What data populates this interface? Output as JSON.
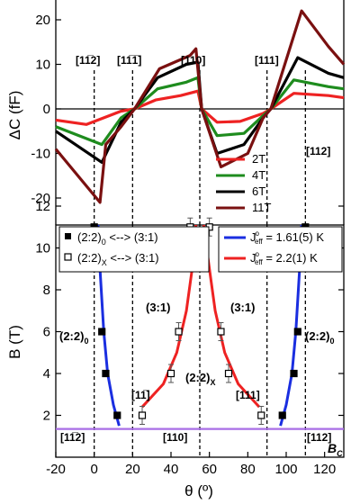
{
  "chart_data": [
    {
      "type": "line",
      "panel": "top",
      "ylabel": "ΔC (fF)",
      "xlim": [
        -20,
        130
      ],
      "ylim": [
        -25,
        24
      ],
      "yticks": [
        -20,
        -10,
        0,
        10,
        20
      ],
      "legend_position": "bottom-right",
      "series": [
        {
          "name": "2T",
          "color": "#ee2222",
          "values": [
            [
              -20,
              -2.5
            ],
            [
              -4,
              -3.5
            ],
            [
              14,
              -0.5
            ],
            [
              21,
              0
            ],
            [
              32,
              2
            ],
            [
              45,
              3
            ],
            [
              54,
              4
            ],
            [
              56,
              0
            ],
            [
              64,
              -3
            ],
            [
              76,
              -2.8
            ],
            [
              88,
              -1
            ],
            [
              92,
              0
            ],
            [
              104,
              3.5
            ],
            [
              122,
              3
            ],
            [
              130,
              2.5
            ]
          ]
        },
        {
          "name": "4T",
          "color": "#1e8c1e",
          "values": [
            [
              -20,
              -4
            ],
            [
              4,
              -8
            ],
            [
              14,
              -2
            ],
            [
              21,
              0
            ],
            [
              33,
              4.5
            ],
            [
              48,
              6
            ],
            [
              54,
              7
            ],
            [
              56,
              0
            ],
            [
              64,
              -6
            ],
            [
              78,
              -5.5
            ],
            [
              88,
              -1.5
            ],
            [
              92,
              0
            ],
            [
              104,
              6.5
            ],
            [
              122,
              5
            ],
            [
              130,
              4.5
            ]
          ]
        },
        {
          "name": "6T",
          "color": "#000000",
          "values": [
            [
              -20,
              -5
            ],
            [
              4,
              -12
            ],
            [
              14,
              -3
            ],
            [
              21,
              0
            ],
            [
              33,
              7
            ],
            [
              48,
              10
            ],
            [
              54,
              10.5
            ],
            [
              56,
              0
            ],
            [
              64,
              -10
            ],
            [
              78,
              -8
            ],
            [
              88,
              -2
            ],
            [
              92,
              0
            ],
            [
              106,
              11.5
            ],
            [
              122,
              8
            ],
            [
              130,
              7
            ]
          ]
        },
        {
          "name": "11T",
          "color": "#7a1010",
          "values": [
            [
              -20,
              -9
            ],
            [
              3,
              -21
            ],
            [
              6,
              -8
            ],
            [
              14,
              -4
            ],
            [
              21,
              0
            ],
            [
              34,
              9
            ],
            [
              50,
              12
            ],
            [
              53,
              13.5
            ],
            [
              56,
              0
            ],
            [
              66,
              -13
            ],
            [
              80,
              -10
            ],
            [
              88,
              -2
            ],
            [
              92,
              0
            ],
            [
              108,
              22
            ],
            [
              122,
              14
            ],
            [
              130,
              10
            ]
          ]
        }
      ],
      "annotations": [
        "[11̅2]",
        "[11̅1̅]",
        "[110]",
        "[111]",
        "[112]"
      ]
    },
    {
      "type": "scatter",
      "panel": "bottom",
      "xlabel": "θ (º)",
      "ylabel": "B (T)",
      "xlim": [
        -20,
        130
      ],
      "ylim": [
        1,
        13.5
      ],
      "xticks": [
        -20,
        0,
        20,
        40,
        60,
        80,
        100,
        120
      ],
      "yticks": [
        2,
        4,
        6,
        8,
        10,
        12
      ],
      "series": [
        {
          "name": "(2:2)0 <--> (3:1)",
          "marker": "filled-square",
          "values": [
            [
              0,
              11
            ],
            [
              4,
              6
            ],
            [
              6,
              4
            ],
            [
              12,
              2
            ],
            [
              98,
              2
            ],
            [
              104,
              4
            ],
            [
              106,
              6
            ],
            [
              110,
              11
            ]
          ]
        },
        {
          "name": "(2:2)X <--> (3:1)",
          "marker": "open-square",
          "values": [
            [
              25,
              2
            ],
            [
              40,
              4
            ],
            [
              44,
              6
            ],
            [
              50,
              11
            ],
            [
              60,
              11
            ],
            [
              66,
              6
            ],
            [
              70,
              4
            ],
            [
              87,
              2
            ]
          ]
        },
        {
          "name": "J_eff^o = 1.61(5) K",
          "color": "#1a2ee0",
          "type": "line",
          "values": [
            [
              2,
              13.5
            ],
            [
              3,
              9
            ],
            [
              5,
              6
            ],
            [
              7,
              4
            ],
            [
              10,
              2.5
            ],
            [
              13,
              1.5
            ],
            [
              97,
              1.5
            ],
            [
              100,
              2.5
            ],
            [
              103,
              4
            ],
            [
              105,
              6
            ],
            [
              107,
              9
            ],
            [
              108,
              13.5
            ]
          ]
        },
        {
          "name": "J_eff^o = 2.2(1) K",
          "color": "#ee2222",
          "type": "line",
          "values": [
            [
              25,
              2.4
            ],
            [
              36,
              3.5
            ],
            [
              43,
              5
            ],
            [
              48,
              7
            ],
            [
              51,
              9
            ],
            [
              53,
              13.5
            ],
            [
              57,
              13.5
            ],
            [
              60,
              9
            ],
            [
              63,
              7
            ],
            [
              68,
              5
            ],
            [
              75,
              3.5
            ],
            [
              86,
              2.4
            ]
          ]
        }
      ],
      "reference_lines": {
        "B_C": 1.35
      },
      "annotations": [
        "(2:2)0",
        "(3:1)",
        "(2:2)X",
        "(3:1)",
        "(2:2)0",
        "[11̅]",
        "[111]",
        "[11̅2]",
        "[110]",
        "[112]",
        "BC"
      ]
    }
  ],
  "labels": {
    "top_ylabel": "ΔC (fF)",
    "bottom_ylabel": "B (T)",
    "xlabel": "θ (º)",
    "leg_2T": "2T",
    "leg_4T": "4T",
    "leg_6T": "6T",
    "leg_11T": "11T",
    "leg_s0": "(2:2)",
    "leg_s0_sub": "0",
    "leg_arrow": " <--> (3:1)",
    "leg_sx": "(2:2)",
    "leg_sx_sub": "X",
    "leg_j": "J",
    "leg_j_sub": "eff",
    "leg_j_sup": "o",
    "leg_jb_val": " = 1.61(5) K",
    "leg_jr_val": " = 2.2(1) K",
    "dir_112bar_top": "[11̅2]",
    "dir_111bar_top": "[11̅1̅]",
    "dir_110_top": "[110]",
    "dir_111_top": "[111]",
    "dir_112_top": "[112]",
    "reg_220_left": "(2:2)",
    "reg_220_left_sub": "0",
    "reg_31_left": "(3:1)",
    "reg_22x": "(2:2)",
    "reg_22x_sub": "X",
    "reg_31_right": "(3:1)",
    "reg_220_right": "(2:2)",
    "reg_220_right_sub": "0",
    "dir_11bar_bot": "[11̅]",
    "dir_111_bot": "[111]",
    "dir_112bar_bot": "[11̅2]",
    "dir_110_bot": "[110]",
    "dir_112_bot": "[112]",
    "bc_label": "B",
    "bc_sub": "C"
  },
  "colors": {
    "red": "#ee2222",
    "green": "#1e8c1e",
    "black": "#000000",
    "darkred": "#7a1010",
    "blue": "#1a2ee0",
    "violet": "#a86ee6"
  }
}
